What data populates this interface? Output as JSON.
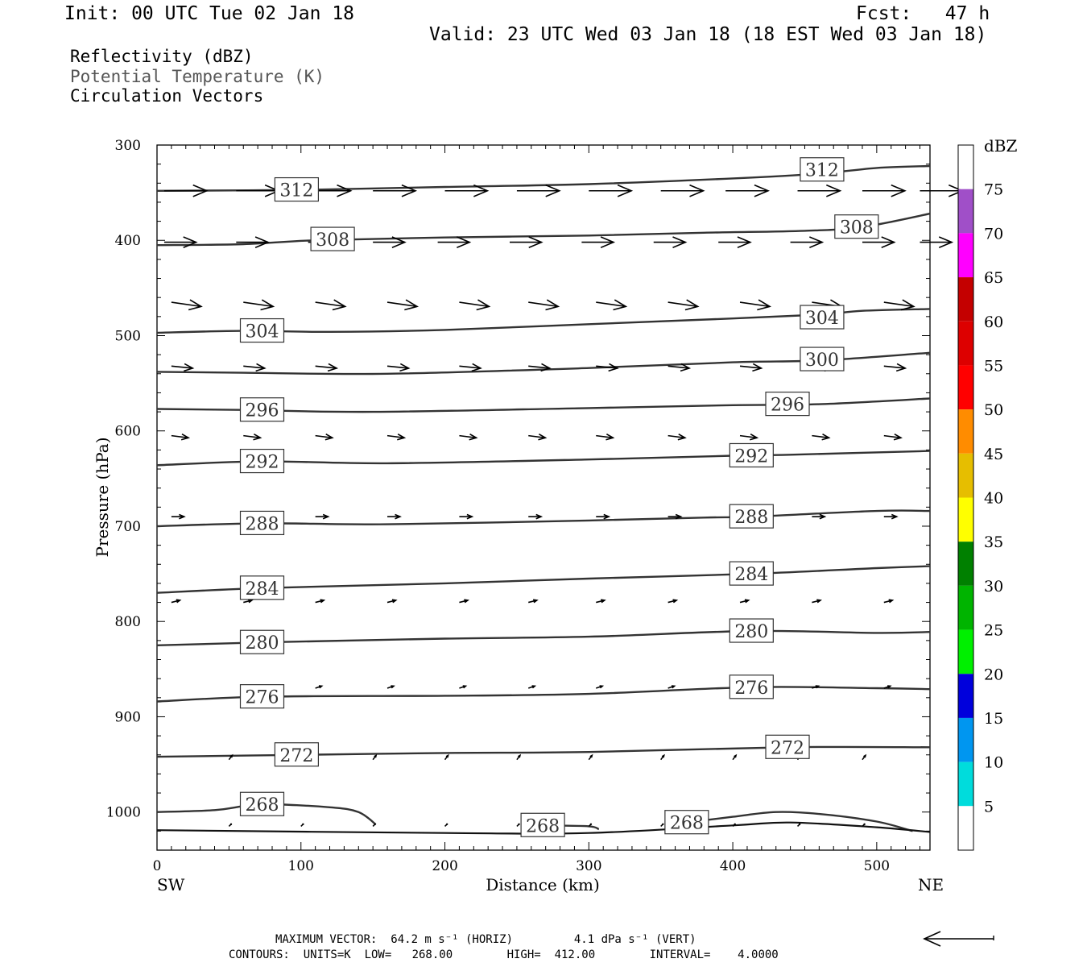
{
  "header": {
    "init": "Init: 00 UTC Tue 02 Jan 18",
    "fcst": "Fcst:   47 h",
    "valid": "Valid: 23 UTC Wed 03 Jan 18 (18 EST Wed 03 Jan 18)",
    "field1": "Reflectivity (dBZ)",
    "field2": "Potential Temperature (K)",
    "field3": "Circulation Vectors"
  },
  "chart_data": {
    "type": "line",
    "xlabel": "Distance (km)",
    "ylabel": "Pressure (hPa)",
    "xlim": [
      0,
      537
    ],
    "ylim": [
      300,
      1040
    ],
    "y_axis": "pressure, increasing downward",
    "x_ticks": [
      0,
      100,
      200,
      300,
      400,
      500
    ],
    "y_ticks": [
      300,
      400,
      500,
      600,
      700,
      800,
      900,
      1000
    ],
    "x_end_labels": {
      "left": "SW",
      "right": "NE"
    },
    "contours": [
      {
        "value": 312,
        "label": "312",
        "points": [
          [
            0,
            348
          ],
          [
            100,
            347
          ],
          [
            200,
            344
          ],
          [
            300,
            341
          ],
          [
            400,
            335
          ],
          [
            460,
            330
          ],
          [
            500,
            324
          ],
          [
            537,
            322
          ]
        ],
        "labels_at": [
          [
            97,
            347
          ],
          [
            462,
            326
          ]
        ]
      },
      {
        "value": 308,
        "label": "308",
        "points": [
          [
            0,
            405
          ],
          [
            60,
            404
          ],
          [
            110,
            400
          ],
          [
            200,
            397
          ],
          [
            300,
            395
          ],
          [
            380,
            392
          ],
          [
            450,
            390
          ],
          [
            490,
            386
          ],
          [
            537,
            372
          ]
        ],
        "labels_at": [
          [
            122,
            399
          ],
          [
            486,
            386
          ]
        ]
      },
      {
        "value": 304,
        "label": "304",
        "points": [
          [
            0,
            497
          ],
          [
            60,
            495
          ],
          [
            120,
            496
          ],
          [
            200,
            494
          ],
          [
            300,
            488
          ],
          [
            400,
            482
          ],
          [
            460,
            478
          ],
          [
            490,
            474
          ],
          [
            537,
            472
          ]
        ],
        "labels_at": [
          [
            73,
            495
          ],
          [
            462,
            481
          ]
        ]
      },
      {
        "value": 300,
        "label": "300",
        "points": [
          [
            0,
            538
          ],
          [
            60,
            539
          ],
          [
            160,
            540
          ],
          [
            300,
            534
          ],
          [
            400,
            528
          ],
          [
            462,
            526
          ],
          [
            537,
            518
          ]
        ],
        "labels_at": [
          [
            462,
            525
          ]
        ]
      },
      {
        "value": 296,
        "label": "296",
        "points": [
          [
            0,
            577
          ],
          [
            60,
            578
          ],
          [
            150,
            580
          ],
          [
            300,
            576
          ],
          [
            400,
            573
          ],
          [
            460,
            572
          ],
          [
            537,
            566
          ]
        ],
        "labels_at": [
          [
            73,
            578
          ],
          [
            438,
            572
          ]
        ]
      },
      {
        "value": 292,
        "label": "292",
        "points": [
          [
            0,
            636
          ],
          [
            73,
            632
          ],
          [
            160,
            634
          ],
          [
            300,
            630
          ],
          [
            400,
            626
          ],
          [
            440,
            625
          ],
          [
            537,
            621
          ]
        ],
        "labels_at": [
          [
            73,
            632
          ],
          [
            413,
            626
          ]
        ]
      },
      {
        "value": 288,
        "label": "288",
        "points": [
          [
            0,
            700
          ],
          [
            73,
            697
          ],
          [
            160,
            698
          ],
          [
            300,
            694
          ],
          [
            380,
            691
          ],
          [
            413,
            690
          ],
          [
            500,
            684
          ],
          [
            537,
            684
          ]
        ],
        "labels_at": [
          [
            73,
            697
          ],
          [
            413,
            690
          ]
        ]
      },
      {
        "value": 284,
        "label": "284",
        "points": [
          [
            0,
            770
          ],
          [
            73,
            765
          ],
          [
            200,
            760
          ],
          [
            300,
            755
          ],
          [
            413,
            750
          ],
          [
            500,
            744
          ],
          [
            537,
            742
          ]
        ],
        "labels_at": [
          [
            73,
            765
          ],
          [
            413,
            750
          ]
        ]
      },
      {
        "value": 280,
        "label": "280",
        "points": [
          [
            0,
            825
          ],
          [
            73,
            822
          ],
          [
            200,
            818
          ],
          [
            300,
            816
          ],
          [
            413,
            810
          ],
          [
            500,
            812
          ],
          [
            537,
            811
          ]
        ],
        "labels_at": [
          [
            73,
            822
          ],
          [
            413,
            810
          ]
        ]
      },
      {
        "value": 276,
        "label": "276",
        "points": [
          [
            0,
            884
          ],
          [
            73,
            879
          ],
          [
            200,
            878
          ],
          [
            300,
            876
          ],
          [
            413,
            869
          ],
          [
            500,
            870
          ],
          [
            537,
            871
          ]
        ],
        "labels_at": [
          [
            73,
            879
          ],
          [
            413,
            869
          ]
        ]
      },
      {
        "value": 272,
        "label": "272",
        "points": [
          [
            0,
            942
          ],
          [
            97,
            940
          ],
          [
            200,
            938
          ],
          [
            300,
            937
          ],
          [
            438,
            932
          ],
          [
            537,
            932
          ]
        ],
        "labels_at": [
          [
            97,
            940
          ],
          [
            438,
            932
          ]
        ]
      },
      {
        "value": 268,
        "label": "268",
        "points": [
          [
            0,
            1000
          ],
          [
            40,
            998
          ],
          [
            73,
            992
          ],
          [
            120,
            995
          ],
          [
            140,
            1000
          ],
          [
            152,
            1013
          ]
        ],
        "labels_at": [
          [
            73,
            992
          ]
        ]
      },
      {
        "value": 268,
        "label": "268",
        "points": [
          [
            270,
            1014
          ],
          [
            300,
            1015
          ],
          [
            307,
            1018
          ]
        ],
        "labels_at": [
          [
            268,
            1014
          ]
        ]
      },
      {
        "value": 268,
        "label": "268",
        "points": [
          [
            368,
            1011
          ],
          [
            400,
            1005
          ],
          [
            430,
            1000
          ],
          [
            460,
            1002
          ],
          [
            500,
            1010
          ],
          [
            525,
            1020
          ]
        ],
        "labels_at": [
          [
            368,
            1011
          ]
        ]
      }
    ],
    "surface": [
      [
        0,
        1019
      ],
      [
        200,
        1022
      ],
      [
        300,
        1022
      ],
      [
        400,
        1014
      ],
      [
        440,
        1011
      ],
      [
        500,
        1016
      ],
      [
        537,
        1021
      ]
    ],
    "vector_rows": [
      {
        "p": 348,
        "x": [
          5,
          55,
          105,
          150,
          200,
          250,
          300,
          350,
          395,
          445,
          490,
          530
        ],
        "u": 40,
        "w": 0
      },
      {
        "p": 402,
        "x": [
          5,
          55,
          105,
          150,
          195,
          245,
          295,
          345,
          390,
          440,
          490,
          530
        ],
        "u": 30,
        "w": 0
      },
      {
        "p": 465,
        "x": [
          10,
          60,
          110,
          160,
          210,
          258,
          305,
          355,
          405,
          455,
          505
        ],
        "u": 28,
        "w": -2
      },
      {
        "p": 532,
        "x": [
          10,
          60,
          110,
          160,
          210,
          258,
          305,
          355,
          405,
          455,
          505
        ],
        "u": 20,
        "w": -1
      },
      {
        "p": 605,
        "x": [
          10,
          60,
          110,
          160,
          210,
          258,
          305,
          355,
          405,
          455,
          505
        ],
        "u": 16,
        "w": -1
      },
      {
        "p": 690,
        "x": [
          10,
          60,
          110,
          160,
          210,
          258,
          305,
          355,
          405,
          455,
          505
        ],
        "u": 12,
        "w": 0
      },
      {
        "p": 780,
        "x": [
          10,
          60,
          110,
          160,
          210,
          258,
          305,
          355,
          405,
          455,
          505
        ],
        "u": 8,
        "w": 1
      },
      {
        "p": 870,
        "x": [
          60,
          110,
          160,
          210,
          258,
          305,
          355,
          405,
          455,
          505
        ],
        "u": 6,
        "w": 1
      },
      {
        "p": 945,
        "x": [
          50,
          150,
          200,
          250,
          300,
          350,
          400,
          445,
          490
        ],
        "u": 3,
        "w": 2
      },
      {
        "p": 1015,
        "x": [
          50,
          100,
          150,
          200,
          250,
          300,
          350,
          400,
          445,
          490
        ],
        "u": 2,
        "w": 1
      }
    ]
  },
  "colorbar": {
    "unit": "dBZ",
    "levels": [
      "75",
      "70",
      "65",
      "60",
      "55",
      "50",
      "45",
      "40",
      "35",
      "30",
      "25",
      "20",
      "15",
      "10",
      "5"
    ],
    "colors": [
      "#ffffff",
      "#a04fc8",
      "#ff00ff",
      "#c40000",
      "#dd0000",
      "#ff0000",
      "#ff8c00",
      "#e6be00",
      "#ffff00",
      "#008000",
      "#00b400",
      "#00f000",
      "#0000dc",
      "#0096f0",
      "#00dcdc",
      "#ffffff"
    ]
  },
  "footer": {
    "line1": "MAXIMUM VECTOR:  64.2 m s⁻¹ (HORIZ)         4.1 dPa s⁻¹ (VERT)",
    "line2": "CONTOURS:  UNITS=K  LOW=   268.00        HIGH=  412.00        INTERVAL=    4.0000"
  }
}
